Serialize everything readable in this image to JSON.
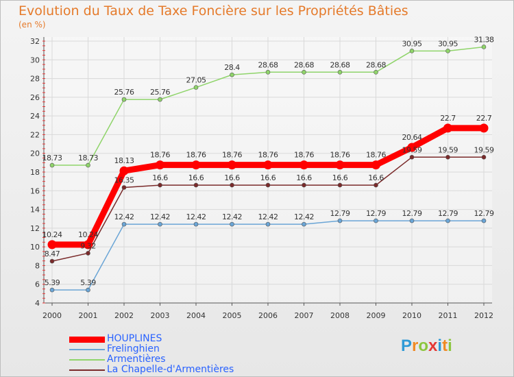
{
  "title": "Evolution du Taux de Taxe Foncière sur les Propriétés Bâties",
  "unit_label": "(en %)",
  "logo": {
    "letters": [
      {
        "ch": "P",
        "color": "#2e9ad6"
      },
      {
        "ch": "r",
        "color": "#f08a24"
      },
      {
        "ch": "o",
        "color": "#8cc63f"
      },
      {
        "ch": "x",
        "color": "#e53935"
      },
      {
        "ch": "i",
        "color": "#2e9ad6"
      },
      {
        "ch": "t",
        "color": "#f08a24"
      },
      {
        "ch": "i",
        "color": "#8cc63f"
      }
    ]
  },
  "chart_data": {
    "type": "line",
    "title": "Evolution du Taux de Taxe Foncière sur les Propriétés Bâties",
    "ylabel": "(en %)",
    "x": [
      "2000",
      "2001",
      "2002",
      "2003",
      "2004",
      "2005",
      "2006",
      "2007",
      "2008",
      "2009",
      "2010",
      "2011",
      "2012"
    ],
    "ylim": [
      4,
      32
    ],
    "yticks": [
      "4",
      "6",
      "8",
      "10",
      "12",
      "14",
      "16",
      "18",
      "20",
      "22",
      "24",
      "26",
      "28",
      "30",
      "32"
    ],
    "grid": true,
    "legend_position": "bottom-left",
    "series": [
      {
        "name": "HOUPLINES",
        "color": "#ff0000",
        "emphasis": true,
        "values": [
          10.24,
          10.24,
          18.13,
          18.76,
          18.76,
          18.76,
          18.76,
          18.76,
          18.76,
          18.76,
          20.64,
          22.7,
          22.7
        ],
        "labels": [
          "10.24",
          "10.24",
          "18.13",
          "18.76",
          "18.76",
          "18.76",
          "18.76",
          "18.76",
          "18.76",
          "18.76",
          "20.64",
          "22.7",
          "22.7"
        ]
      },
      {
        "name": "Frelinghien",
        "color": "#6aa5d6",
        "emphasis": false,
        "values": [
          5.39,
          5.39,
          12.42,
          12.42,
          12.42,
          12.42,
          12.42,
          12.42,
          12.79,
          12.79,
          12.79,
          12.79,
          12.79
        ],
        "labels": [
          "5.39",
          "5.39",
          "12.42",
          "12.42",
          "12.42",
          "12.42",
          "12.42",
          "12.42",
          "12.79",
          "12.79",
          "12.79",
          "12.79",
          "12.79"
        ]
      },
      {
        "name": "Armentières",
        "color": "#8fd46a",
        "emphasis": false,
        "values": [
          18.73,
          18.73,
          25.76,
          25.76,
          27.05,
          28.4,
          28.68,
          28.68,
          28.68,
          28.68,
          30.95,
          30.95,
          31.38
        ],
        "labels": [
          "18.73",
          "18.73",
          "25.76",
          "25.76",
          "27.05",
          "28.4",
          "28.68",
          "28.68",
          "28.68",
          "28.68",
          "30.95",
          "30.95",
          "31.38"
        ]
      },
      {
        "name": "La Chapelle-d'Armentières",
        "color": "#7a2a2a",
        "emphasis": false,
        "values": [
          8.47,
          9.32,
          16.35,
          16.6,
          16.6,
          16.6,
          16.6,
          16.6,
          16.6,
          16.6,
          19.59,
          19.59,
          19.59
        ],
        "labels": [
          "8.47",
          "9.32",
          "16.35",
          "16.6",
          "16.6",
          "16.6",
          "16.6",
          "16.6",
          "16.6",
          "16.6",
          "19.59",
          "19.59",
          "19.59"
        ]
      }
    ]
  }
}
